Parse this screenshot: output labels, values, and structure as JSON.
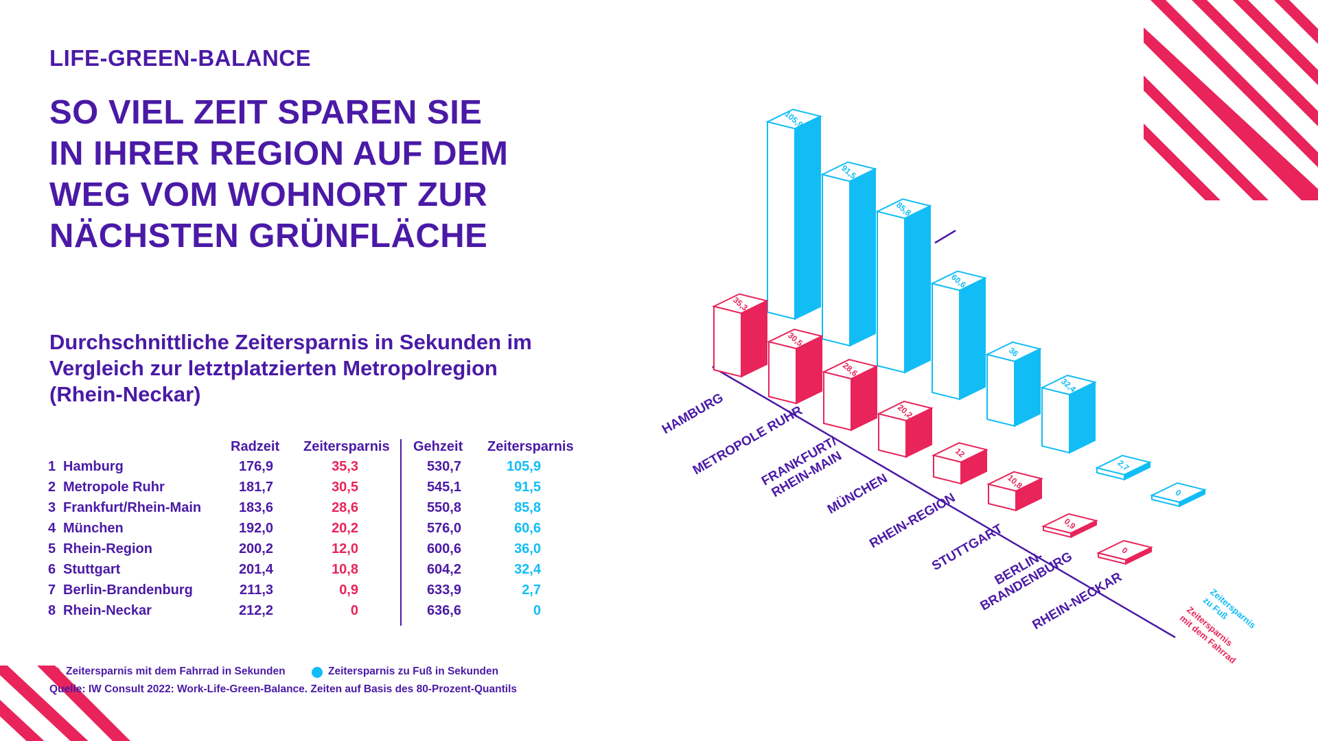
{
  "kicker": "LIFE-GREEN-BALANCE",
  "headline": {
    "lines": [
      "SO VIEL ZEIT SPAREN SIE",
      "IN IHRER REGION AUF DEM",
      "WEG VOM WOHNORT ZUR",
      "NÄCHSTEN GRÜNFLÄCHE"
    ]
  },
  "subtitle": {
    "lines": [
      "Durchschnittliche Zeitersparnis in Sekunden im",
      "Vergleich zur letztplatzierten Metropolregion",
      "(Rhein-Neckar)"
    ]
  },
  "table": {
    "headers": {
      "bike_time": "Radzeit",
      "bike_saving": "Zeitersparnis",
      "walk_time": "Gehzeit",
      "walk_saving": "Zeitersparnis"
    },
    "rows": [
      {
        "rank": "1",
        "region": "Hamburg",
        "bike_time": "176,9",
        "bike_saving": "35,3",
        "walk_time": "530,7",
        "walk_saving": "105,9"
      },
      {
        "rank": "2",
        "region": "Metropole Ruhr",
        "bike_time": "181,7",
        "bike_saving": "30,5",
        "walk_time": "545,1",
        "walk_saving": "91,5"
      },
      {
        "rank": "3",
        "region": "Frankfurt/Rhein-Main",
        "bike_time": "183,6",
        "bike_saving": "28,6",
        "walk_time": "550,8",
        "walk_saving": "85,8"
      },
      {
        "rank": "4",
        "region": "München",
        "bike_time": "192,0",
        "bike_saving": "20,2",
        "walk_time": "576,0",
        "walk_saving": "60,6"
      },
      {
        "rank": "5",
        "region": "Rhein-Region",
        "bike_time": "200,2",
        "bike_saving": "12,0",
        "walk_time": "600,6",
        "walk_saving": "36,0"
      },
      {
        "rank": "6",
        "region": "Stuttgart",
        "bike_time": "201,4",
        "bike_saving": "10,8",
        "walk_time": "604,2",
        "walk_saving": "32,4"
      },
      {
        "rank": "7",
        "region": "Berlin-Brandenburg",
        "bike_time": "211,3",
        "bike_saving": "0,9",
        "walk_time": "633,9",
        "walk_saving": "2,7"
      },
      {
        "rank": "8",
        "region": "Rhein-Neckar",
        "bike_time": "212,2",
        "bike_saving": "0",
        "walk_time": "636,6",
        "walk_saving": "0"
      }
    ]
  },
  "legend": {
    "bike": "Zeitersparnis mit dem Fahrrad in Sekunden",
    "walk": "Zeitersparnis zu Fuß in Sekunden"
  },
  "source": "Quelle: IW Consult 2022: Work-Life-Green-Balance. Zeiten auf Basis des 80-Prozent-Quantils",
  "colors": {
    "purple": "#4a1aa6",
    "red": "#e8245a",
    "blue": "#12bdf5",
    "white": "#ffffff"
  },
  "chart_data": {
    "type": "bar",
    "title": "Durchschnittliche Zeitersparnis in Sekunden",
    "categories": [
      "HAMBURG",
      "METROPOLE RUHR",
      "FRANKFURT/\nRHEIN-MAIN",
      "MÜNCHEN",
      "RHEIN-REGION",
      "STUTTGART",
      "BERLIN-\nBRANDENBURG",
      "RHEIN-NECKAR"
    ],
    "series": [
      {
        "name": "Zeitersparnis mit dem Fahrrad",
        "values": [
          35.3,
          30.5,
          28.6,
          20.2,
          12,
          10.8,
          0.9,
          0
        ],
        "labels": [
          "35,3",
          "30,5",
          "28,6",
          "20,2",
          "12",
          "10,8",
          "0,9",
          "0"
        ]
      },
      {
        "name": "Zeitersparnis zu Fuß",
        "values": [
          105.9,
          91.5,
          85.8,
          60.6,
          36,
          32.4,
          2.7,
          0
        ],
        "labels": [
          "105,9",
          "91,5",
          "85,8",
          "60,6",
          "36",
          "32,4",
          "2,7",
          "0"
        ]
      }
    ],
    "series_labels": {
      "walk": "Zeitersparnis\nzu Fuß",
      "bike": "Zeitersparnis\nmit dem Fahrrad"
    }
  }
}
